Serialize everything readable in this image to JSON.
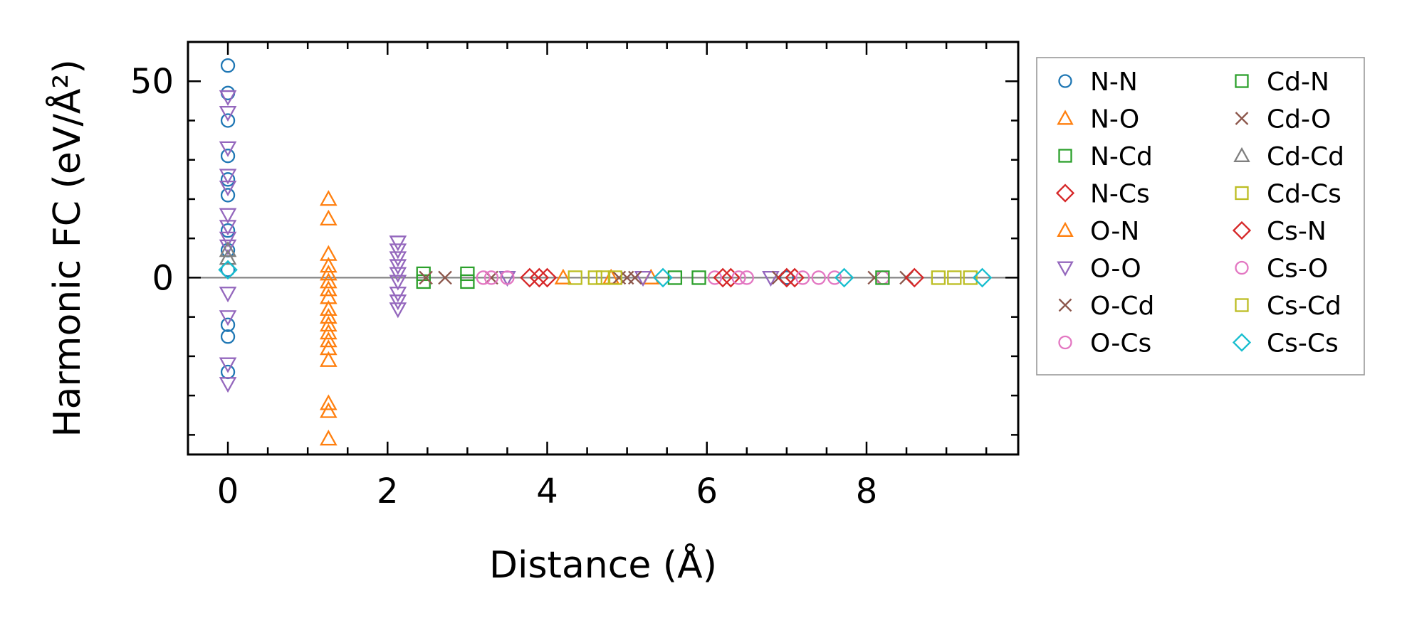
{
  "chart_data": {
    "type": "scatter",
    "xlabel": "Distance (Å)",
    "ylabel": "Harmonic FC (eV/Å²)",
    "xlim": [
      -0.5,
      9.9
    ],
    "ylim": [
      -45,
      60
    ],
    "xticks": [
      0,
      2,
      4,
      6,
      8
    ],
    "yticks": [
      0,
      50
    ],
    "x_minor_step": 0.5,
    "y_minor_step": 10,
    "zero_line": true,
    "grid": false,
    "legend_placement": "outside-right",
    "legend_columns": 2,
    "series": [
      {
        "name": "N-N",
        "marker": "circle",
        "color": "#1f77b4",
        "x": [
          0,
          0,
          0,
          0,
          0,
          0,
          0,
          0,
          0,
          0,
          0,
          0,
          7.0,
          7.0
        ],
        "y": [
          54,
          47,
          40,
          31,
          25,
          21,
          12,
          7,
          2,
          -12,
          -15,
          -24,
          0,
          0
        ]
      },
      {
        "name": "N-O",
        "marker": "triangle-up",
        "color": "#ff7f0e",
        "x": [
          1.26,
          1.26,
          1.26,
          1.26,
          1.26,
          1.26,
          1.26,
          1.26,
          1.26,
          1.26,
          1.26,
          1.26,
          1.26,
          1.26,
          1.26,
          1.26,
          1.26,
          1.26
        ],
        "y": [
          20,
          15,
          6,
          3,
          1,
          -1,
          -3,
          -5,
          -8,
          -10,
          -12,
          -14,
          -16,
          -18,
          -21,
          -32,
          -34,
          -41
        ]
      },
      {
        "name": "N-Cd",
        "marker": "square",
        "color": "#2ca02c",
        "x": [
          2.45,
          2.45,
          3.0,
          3.0
        ],
        "y": [
          1,
          -1,
          1,
          -1
        ]
      },
      {
        "name": "N-Cs",
        "marker": "diamond",
        "color": "#d62728",
        "x": [
          3.78,
          3.9,
          4.0,
          6.3,
          7.1
        ],
        "y": [
          0,
          0,
          0,
          0,
          0
        ]
      },
      {
        "name": "O-N",
        "marker": "triangle-up",
        "color": "#ff7f0e",
        "x": [
          4.2,
          4.8,
          5.3
        ],
        "y": [
          0,
          0,
          0
        ]
      },
      {
        "name": "O-O",
        "marker": "triangle-down",
        "color": "#9467bd",
        "x": [
          0,
          0,
          0,
          0,
          0,
          0,
          0,
          0,
          0,
          0,
          0,
          0,
          0,
          2.13,
          2.13,
          2.13,
          2.13,
          2.13,
          2.13,
          2.13,
          2.13,
          2.13,
          3.5,
          5.2,
          6.8
        ],
        "y": [
          46,
          42,
          33,
          26,
          23,
          16,
          13,
          10,
          8,
          -4,
          -10,
          -22,
          -27,
          9,
          7,
          5,
          3,
          1,
          -1,
          -4,
          -6,
          -8,
          0,
          0,
          0
        ]
      },
      {
        "name": "O-Cd",
        "marker": "x",
        "color": "#8c564b",
        "x": [
          2.48,
          2.72,
          3.3,
          4.9,
          5.1,
          8.1
        ],
        "y": [
          0,
          0,
          0,
          0,
          0,
          0
        ]
      },
      {
        "name": "O-Cs",
        "marker": "circle",
        "color": "#e377c2",
        "x": [
          3.2,
          3.3,
          3.5,
          6.1,
          6.4,
          7.4,
          8.2
        ],
        "y": [
          0,
          0,
          0,
          0,
          0,
          0,
          0
        ]
      },
      {
        "name": "Cd-N",
        "marker": "square",
        "color": "#2ca02c",
        "x": [
          5.6,
          5.9,
          8.2
        ],
        "y": [
          0,
          0,
          0
        ]
      },
      {
        "name": "Cd-O",
        "marker": "x",
        "color": "#8c564b",
        "x": [
          5.0,
          6.9,
          8.5
        ],
        "y": [
          0,
          0,
          0
        ]
      },
      {
        "name": "Cd-Cd",
        "marker": "triangle-up",
        "color": "#7f7f7f",
        "x": [
          0,
          0
        ],
        "y": [
          7,
          5
        ]
      },
      {
        "name": "Cd-Cs",
        "marker": "square",
        "color": "#bcbd22",
        "x": [
          4.35,
          4.6,
          4.85,
          8.9,
          9.1
        ],
        "y": [
          0,
          0,
          0,
          0,
          0
        ]
      },
      {
        "name": "Cs-N",
        "marker": "diamond",
        "color": "#d62728",
        "x": [
          6.2,
          7.0,
          8.6
        ],
        "y": [
          0,
          0,
          0
        ]
      },
      {
        "name": "Cs-O",
        "marker": "circle",
        "color": "#e377c2",
        "x": [
          6.5,
          7.2,
          7.6
        ],
        "y": [
          0,
          0,
          0
        ]
      },
      {
        "name": "Cs-Cd",
        "marker": "square",
        "color": "#bcbd22",
        "x": [
          4.7,
          9.3
        ],
        "y": [
          0,
          0
        ]
      },
      {
        "name": "Cs-Cs",
        "marker": "diamond",
        "color": "#17becf",
        "x": [
          0,
          5.45,
          7.72,
          9.45
        ],
        "y": [
          2,
          0,
          0,
          0
        ]
      }
    ]
  }
}
